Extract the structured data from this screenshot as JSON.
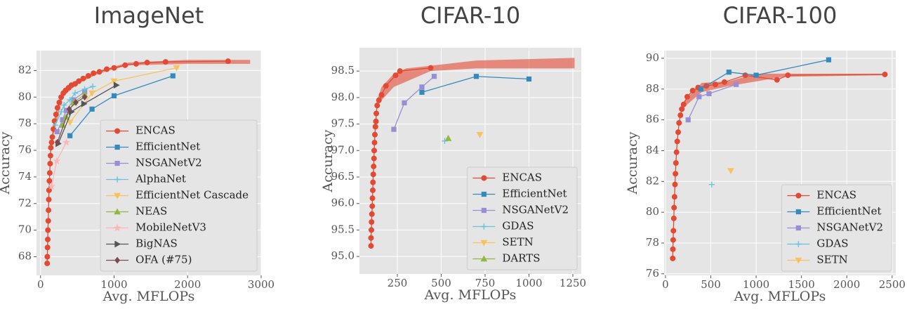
{
  "chart_data": [
    {
      "type": "line",
      "title": "ImageNet",
      "xlabel": "Avg. MFLOPs",
      "ylabel": "Accuracy",
      "xlim": [
        -55,
        3000
      ],
      "ylim": [
        66.6,
        83.5
      ],
      "xticks": [
        0,
        1000,
        2000,
        3000
      ],
      "yticks": [
        68,
        70,
        72,
        74,
        76,
        78,
        80,
        82
      ],
      "grid": true,
      "legend": "lower right",
      "band": {
        "color": "#e24a33",
        "x": [
          150,
          300,
          500,
          800,
          1200,
          2000,
          2850
        ],
        "lower": [
          76.6,
          80,
          81,
          81.8,
          82.4,
          82.5,
          82.5
        ],
        "upper": [
          77,
          80.5,
          81.3,
          82,
          82.6,
          82.8,
          82.8
        ]
      },
      "series": [
        {
          "name": "ENCAS",
          "color": "#e24a33",
          "marker": "o",
          "x": [
            90,
            92,
            95,
            98,
            100,
            105,
            108,
            112,
            115,
            120,
            125,
            130,
            135,
            140,
            150,
            160,
            175,
            190,
            210,
            230,
            255,
            280,
            310,
            340,
            380,
            420,
            470,
            520,
            580,
            650,
            720,
            800,
            900,
            1000,
            1150,
            1300,
            1450,
            1700,
            2550
          ],
          "values": [
            67.5,
            68,
            68.7,
            69.3,
            70,
            70.7,
            71.5,
            72.3,
            73,
            73.7,
            74.3,
            75,
            75.6,
            76.2,
            76.6,
            77,
            77.6,
            78.2,
            78.7,
            79.2,
            79.6,
            80,
            80.3,
            80.5,
            80.7,
            80.9,
            81,
            81.2,
            81.4,
            81.6,
            81.8,
            81.9,
            82.1,
            82.2,
            82.4,
            82.5,
            82.6,
            82.65,
            82.7
          ]
        },
        {
          "name": "EfficientNet",
          "color": "#348abd",
          "marker": "s",
          "x": [
            400,
            700,
            1000,
            1800
          ],
          "values": [
            77.1,
            79.1,
            80.1,
            81.6
          ]
        },
        {
          "name": "NSGANetV2",
          "color": "#988ed5",
          "marker": "s",
          "x": [
            225,
            300,
            350,
            450,
            600
          ],
          "values": [
            77.4,
            78.3,
            79,
            79.8,
            80.4
          ]
        },
        {
          "name": "AlphaNet",
          "color": "#67c3e0",
          "marker": "+",
          "x": [
            200,
            280,
            320,
            400,
            470,
            600,
            710
          ],
          "values": [
            77.9,
            78.9,
            79.4,
            79.8,
            80.3,
            80.6,
            80.8
          ]
        },
        {
          "name": "EfficientNet Cascade",
          "color": "#fbc15e",
          "marker": "v",
          "x": [
            400,
            700,
            1000,
            1850
          ],
          "values": [
            78.1,
            80.3,
            81.2,
            82.2
          ]
        },
        {
          "name": "NEAS",
          "color": "#8eba42",
          "marker": "^",
          "x": [
            300,
            350,
            450,
            600
          ],
          "values": [
            77.9,
            78.5,
            79.6,
            80.2
          ]
        },
        {
          "name": "MobileNetV3",
          "color": "#ffb5b8",
          "marker": "*",
          "x": [
            150,
            220,
            350
          ],
          "values": [
            73.3,
            75.2,
            76.6
          ]
        },
        {
          "name": "BigNAS",
          "color": "#555555",
          "marker": ">",
          "x": [
            240,
            420,
            590,
            1030
          ],
          "values": [
            76.5,
            78.9,
            79.5,
            80.9
          ]
        },
        {
          "name": "OFA (#75)",
          "color": "#7d4b4b",
          "marker": "D",
          "x": [
            230,
            390,
            480,
            600
          ],
          "values": [
            76.6,
            79.1,
            79.6,
            80
          ]
        }
      ]
    },
    {
      "type": "line",
      "title": "CIFAR-10",
      "xlabel": "Avg. MFLOPs",
      "ylabel": "Accuracy",
      "xlim": [
        34,
        1298
      ],
      "ylim": [
        94.67,
        98.94
      ],
      "xticks": [
        250,
        500,
        750,
        1000,
        1250
      ],
      "yticks": [
        {
          "value": 95,
          "label": "95.0"
        },
        95.5,
        {
          "value": 96,
          "label": "96.0"
        },
        96.5,
        {
          "value": 97,
          "label": "97.0"
        },
        97.5,
        {
          "value": 98,
          "label": "98.0"
        },
        98.5
      ],
      "grid": true,
      "legend": "lower right",
      "band": {
        "color": "#e24a33",
        "x": [
          130,
          160,
          230,
          300,
          440,
          700,
          1260
        ],
        "lower": [
          97.8,
          97.95,
          98.2,
          98.3,
          98.5,
          98.55,
          98.55
        ],
        "upper": [
          97.9,
          98.2,
          98.45,
          98.55,
          98.6,
          98.7,
          98.75
        ]
      },
      "series": [
        {
          "name": "ENCAS",
          "color": "#e24a33",
          "marker": "o",
          "x": [
            100,
            100,
            102,
            103,
            105,
            107,
            108,
            110,
            111,
            113,
            115,
            117,
            118,
            120,
            122,
            125,
            128,
            130,
            135,
            145,
            160,
            185,
            240,
            265,
            440
          ],
          "values": [
            95.2,
            95.35,
            95.5,
            95.65,
            95.8,
            95.95,
            96.1,
            96.25,
            96.4,
            96.55,
            96.7,
            96.85,
            97,
            97.15,
            97.3,
            97.45,
            97.55,
            97.7,
            97.85,
            97.95,
            98.05,
            98.22,
            98.42,
            98.5,
            98.56
          ]
        },
        {
          "name": "EfficientNet",
          "color": "#348abd",
          "marker": "s",
          "x": [
            390,
            700,
            1000
          ],
          "values": [
            98.1,
            98.4,
            98.35
          ]
        },
        {
          "name": "NSGANetV2",
          "color": "#988ed5",
          "marker": "s",
          "x": [
            230,
            290,
            390,
            460
          ],
          "values": [
            97.4,
            97.9,
            98.2,
            98.4
          ]
        },
        {
          "name": "GDAS",
          "color": "#67c3e0",
          "marker": "+",
          "x": [
            520
          ],
          "values": [
            97.18
          ]
        },
        {
          "name": "SETN",
          "color": "#fbc15e",
          "marker": "v",
          "x": [
            720
          ],
          "values": [
            97.3
          ]
        },
        {
          "name": "DARTS",
          "color": "#8eba42",
          "marker": "^",
          "x": [
            540
          ],
          "values": [
            97.23
          ]
        }
      ]
    },
    {
      "type": "line",
      "title": "CIFAR-100",
      "xlabel": "Avg. MFLOPs",
      "ylabel": "Accuracy",
      "xlim": [
        -15,
        2540
      ],
      "ylim": [
        75.9,
        90.5
      ],
      "xticks": [
        0,
        500,
        1000,
        1500,
        2000,
        2500
      ],
      "yticks": [
        76,
        78,
        80,
        82,
        84,
        86,
        88,
        90
      ],
      "grid": true,
      "legend": "lower right",
      "band": {
        "color": "#e24a33",
        "x": [
          200,
          400,
          700,
          1000,
          1300,
          2420
        ],
        "lower": [
          86.8,
          87.8,
          88.2,
          88.5,
          88.8,
          88.9
        ],
        "upper": [
          87.2,
          88.4,
          88.5,
          89,
          89,
          89
        ]
      },
      "series": [
        {
          "name": "ENCAS",
          "color": "#e24a33",
          "marker": "o",
          "x": [
            80,
            82,
            85,
            88,
            92,
            95,
            100,
            105,
            110,
            115,
            122,
            130,
            140,
            150,
            165,
            180,
            200,
            240,
            300,
            360,
            450,
            550,
            650,
            880,
            1230,
            1350,
            2420
          ],
          "values": [
            77,
            77.6,
            78.2,
            78.8,
            79.6,
            80.3,
            81,
            81.8,
            82.5,
            83.2,
            83.9,
            84.6,
            85.2,
            85.8,
            86.3,
            86.7,
            87,
            87.5,
            87.9,
            88.1,
            88.2,
            88.3,
            88.45,
            88.9,
            88.6,
            88.9,
            88.95
          ]
        },
        {
          "name": "EfficientNet",
          "color": "#348abd",
          "marker": "s",
          "x": [
            390,
            700,
            1000,
            1800
          ],
          "values": [
            88,
            89.1,
            88.9,
            89.9
          ]
        },
        {
          "name": "NSGANetV2",
          "color": "#988ed5",
          "marker": "s",
          "x": [
            250,
            370,
            480,
            780
          ],
          "values": [
            86,
            87.5,
            87.7,
            88.3
          ]
        },
        {
          "name": "GDAS",
          "color": "#67c3e0",
          "marker": "+",
          "x": [
            510
          ],
          "values": [
            81.8
          ]
        },
        {
          "name": "SETN",
          "color": "#fbc15e",
          "marker": "v",
          "x": [
            720
          ],
          "values": [
            82.7
          ]
        }
      ]
    }
  ]
}
